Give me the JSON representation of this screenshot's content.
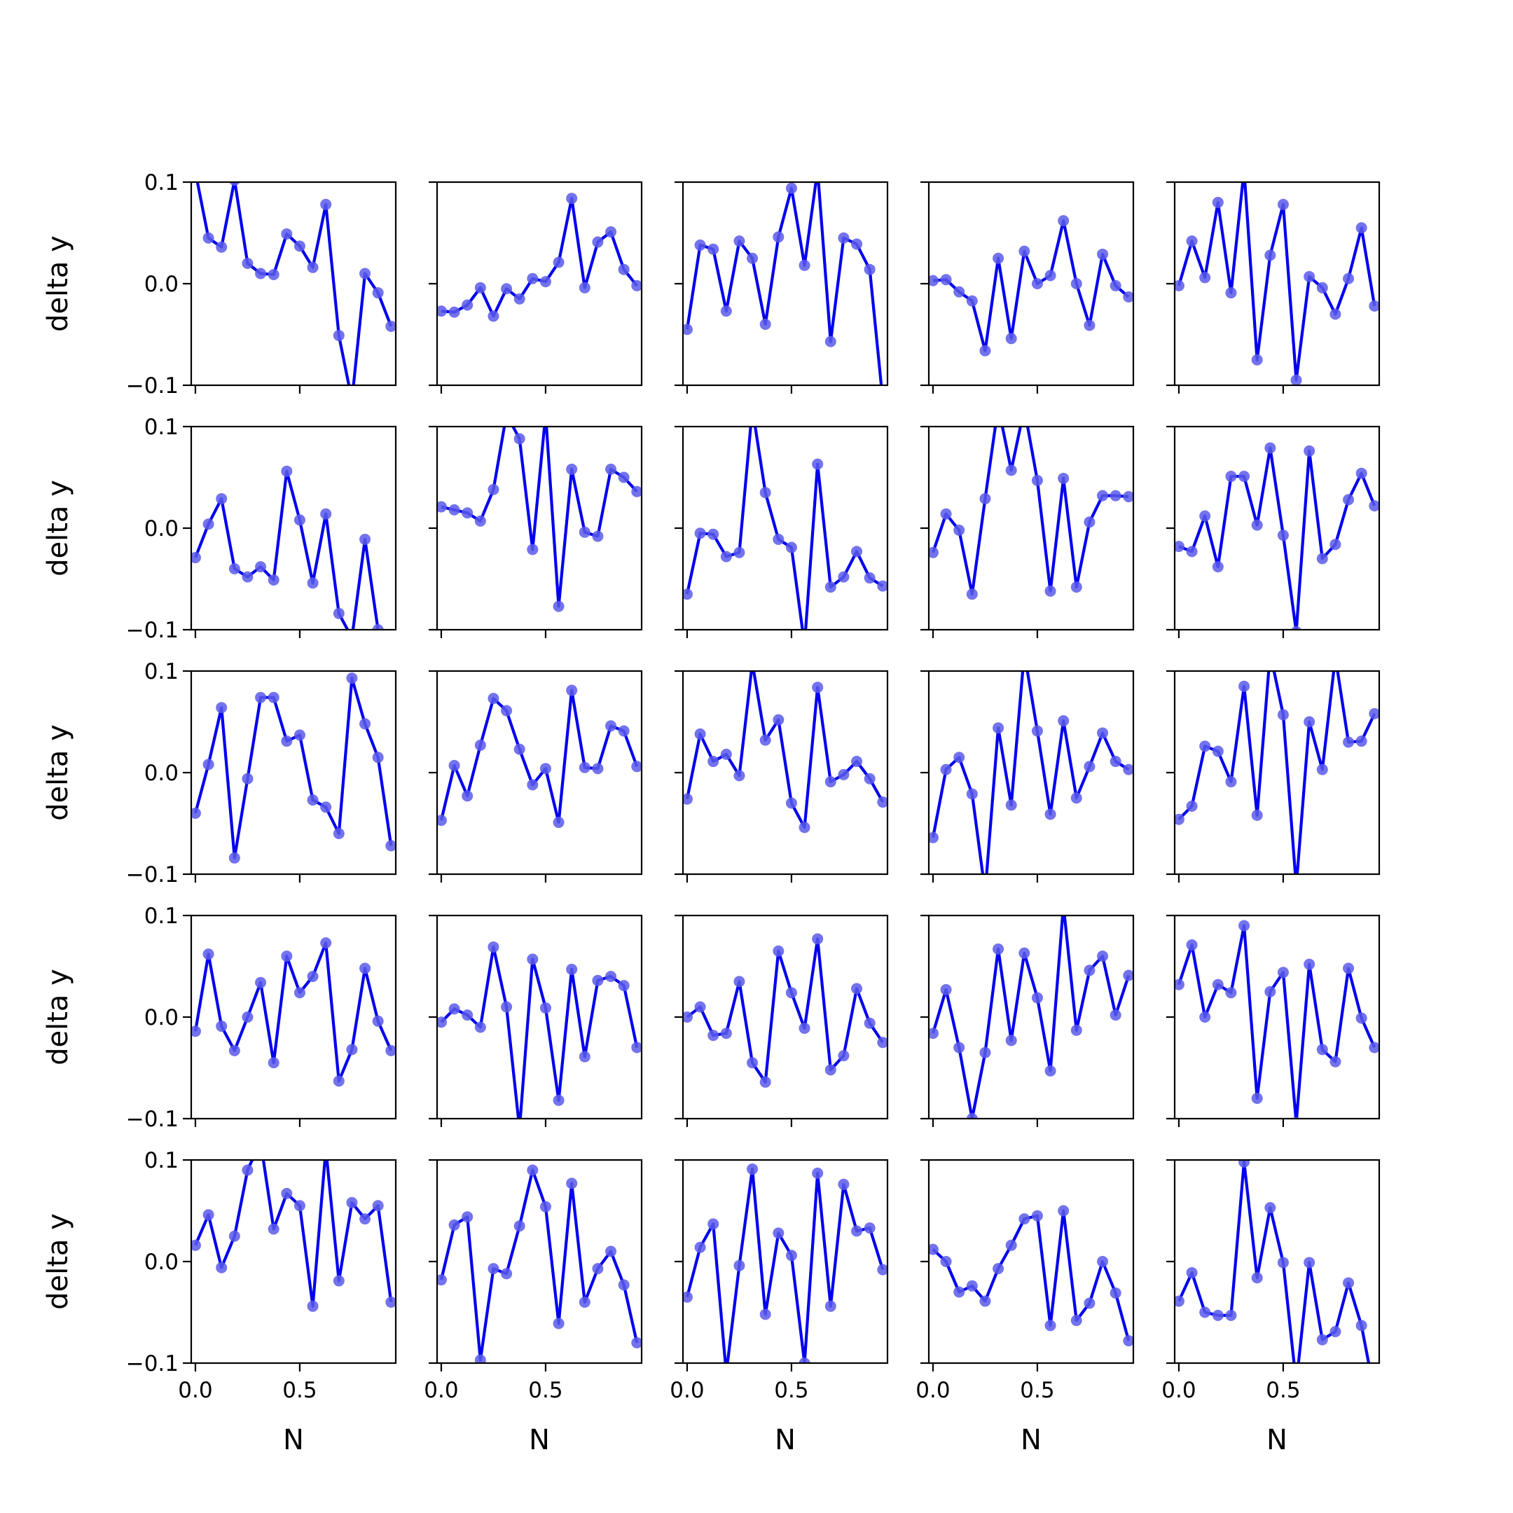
{
  "chart_data": {
    "type": "line",
    "layout": {
      "rows": 5,
      "cols": 5
    },
    "xlabel": "N",
    "ylabel": "delta y",
    "xlim": [
      -0.02,
      0.96
    ],
    "ylim": [
      -0.1,
      0.1
    ],
    "xticks": [
      0.0,
      0.5
    ],
    "xtick_labels": [
      "0.0",
      "0.5"
    ],
    "yticks": [
      -0.1,
      0.0,
      0.1
    ],
    "ytick_labels": [
      "−0.1",
      "0.0",
      "0.1"
    ],
    "grid": false,
    "line_color": "#0000ee",
    "marker_color": "#5b5bea",
    "x": [
      0.0,
      0.0625,
      0.125,
      0.1875,
      0.25,
      0.3125,
      0.375,
      0.4375,
      0.5,
      0.5625,
      0.625,
      0.6875,
      0.75,
      0.8125,
      0.875,
      0.9375
    ],
    "panels": [
      [
        0.11,
        0.045,
        0.036,
        0.102,
        0.02,
        0.01,
        0.009,
        0.049,
        0.037,
        0.016,
        0.078,
        -0.051,
        -0.115,
        0.01,
        -0.009,
        -0.042
      ],
      [
        -0.027,
        -0.028,
        -0.021,
        -0.004,
        -0.032,
        -0.005,
        -0.015,
        0.005,
        0.002,
        0.021,
        0.084,
        -0.004,
        0.041,
        0.051,
        0.014,
        -0.002
      ],
      [
        -0.045,
        0.038,
        0.034,
        -0.027,
        0.042,
        0.025,
        -0.04,
        0.046,
        0.094,
        0.018,
        0.112,
        -0.057,
        0.045,
        0.039,
        0.014,
        -0.115
      ],
      [
        0.003,
        0.004,
        -0.008,
        -0.017,
        -0.066,
        0.025,
        -0.054,
        0.032,
        0.0,
        0.008,
        0.062,
        0.0,
        -0.041,
        0.029,
        -0.002,
        -0.013
      ],
      [
        -0.002,
        0.042,
        0.006,
        0.08,
        -0.009,
        0.112,
        -0.075,
        0.028,
        0.078,
        -0.095,
        0.007,
        -0.004,
        -0.03,
        0.005,
        0.055,
        -0.022
      ],
      [
        -0.029,
        0.004,
        0.029,
        -0.04,
        -0.048,
        -0.038,
        -0.051,
        0.056,
        0.008,
        -0.054,
        0.014,
        -0.084,
        -0.108,
        -0.011,
        -0.1,
        -0.13
      ],
      [
        0.021,
        0.018,
        0.015,
        0.007,
        0.038,
        0.112,
        0.088,
        -0.021,
        0.112,
        -0.077,
        0.058,
        -0.004,
        -0.008,
        0.058,
        0.05,
        0.036
      ],
      [
        -0.065,
        -0.005,
        -0.006,
        -0.028,
        -0.024,
        0.118,
        0.035,
        -0.011,
        -0.019,
        -0.115,
        0.063,
        -0.058,
        -0.048,
        -0.023,
        -0.049,
        -0.057
      ],
      [
        -0.024,
        0.014,
        -0.002,
        -0.065,
        0.029,
        0.12,
        0.057,
        0.118,
        0.047,
        -0.062,
        0.049,
        -0.058,
        0.006,
        0.032,
        0.032,
        0.031
      ],
      [
        -0.018,
        -0.023,
        0.012,
        -0.038,
        0.051,
        0.051,
        0.003,
        0.079,
        -0.007,
        -0.102,
        0.076,
        -0.03,
        -0.016,
        0.028,
        0.054,
        0.022
      ]
    ]
  }
}
